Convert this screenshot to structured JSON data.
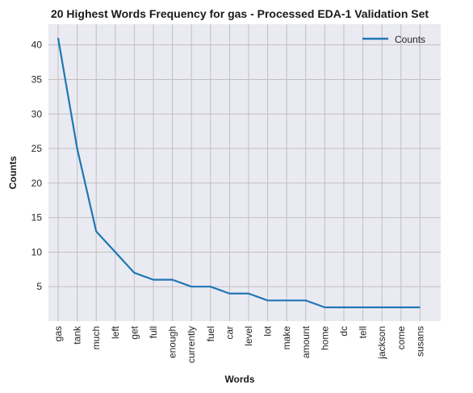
{
  "chart_data": {
    "type": "line",
    "title": "20 Highest Words Frequency for gas - Processed EDA-1 Validation Set",
    "xlabel": "Words",
    "ylabel": "Counts",
    "categories": [
      "gas",
      "tank",
      "much",
      "left",
      "get",
      "full",
      "enough",
      "currently",
      "fuel",
      "car",
      "level",
      "lot",
      "make",
      "amount",
      "home",
      "dc",
      "tell",
      "jackson",
      "come",
      "susans"
    ],
    "series": [
      {
        "name": "Counts",
        "values": [
          41,
          25,
          13,
          10,
          7,
          6,
          6,
          5,
          5,
          4,
          4,
          3,
          3,
          3,
          2,
          2,
          2,
          2,
          2,
          2
        ]
      }
    ],
    "yticks": [
      5,
      10,
      15,
      20,
      25,
      30,
      35,
      40
    ],
    "ylim": [
      0,
      43
    ],
    "grid": true,
    "legend_position": "top-right",
    "colors": {
      "line": "#1f77b4",
      "plot_background": "#eaeaf2",
      "grid": "#c0c0c0"
    }
  }
}
